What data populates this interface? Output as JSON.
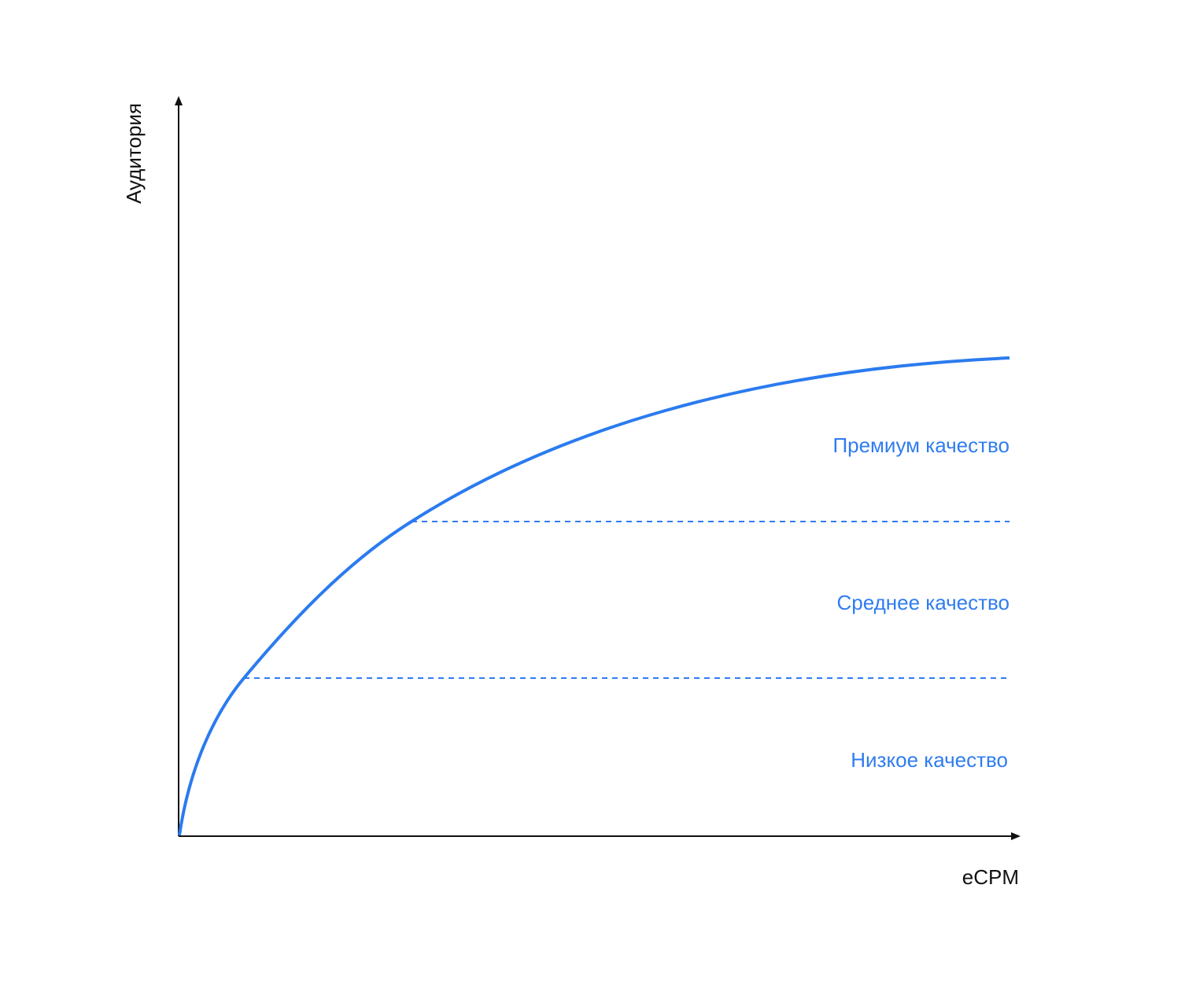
{
  "axes": {
    "y_label": "Аудитория",
    "x_label": "eCPM"
  },
  "zones": [
    {
      "label": "Премиум качество"
    },
    {
      "label": "Среднее качество"
    },
    {
      "label": "Низкое качество"
    }
  ]
}
